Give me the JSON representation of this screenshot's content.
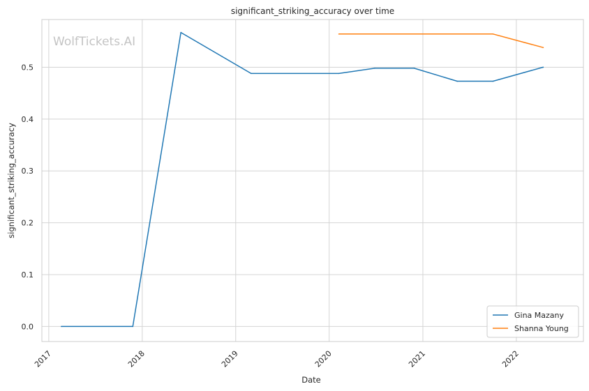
{
  "chart_data": {
    "type": "line",
    "title": "significant_striking_accuracy over time",
    "xlabel": "Date",
    "ylabel": "significant_striking_accuracy",
    "watermark": "WolfTickets.AI",
    "xlim": [
      "2016-12-05",
      "2022-09-20"
    ],
    "ylim": [
      -0.029,
      0.592
    ],
    "x_ticks": [
      "2017",
      "2018",
      "2019",
      "2020",
      "2021",
      "2022"
    ],
    "y_ticks": [
      "0.0",
      "0.1",
      "0.2",
      "0.3",
      "0.4",
      "0.5"
    ],
    "grid": true,
    "legend_position": "bottom-right",
    "series": [
      {
        "name": "Gina Mazany",
        "color": "#1f77b4",
        "points": [
          {
            "x": "2017-02-19",
            "y": 0.0
          },
          {
            "x": "2017-11-25",
            "y": 0.0
          },
          {
            "x": "2018-06-01",
            "y": 0.567
          },
          {
            "x": "2019-03-02",
            "y": 0.488
          },
          {
            "x": "2020-02-08",
            "y": 0.488
          },
          {
            "x": "2020-06-27",
            "y": 0.498
          },
          {
            "x": "2020-11-28",
            "y": 0.498
          },
          {
            "x": "2021-05-15",
            "y": 0.473
          },
          {
            "x": "2021-10-02",
            "y": 0.473
          },
          {
            "x": "2022-04-16",
            "y": 0.5
          }
        ]
      },
      {
        "name": "Shanna Young",
        "color": "#ff7f0e",
        "points": [
          {
            "x": "2020-02-08",
            "y": 0.564
          },
          {
            "x": "2021-10-02",
            "y": 0.564
          },
          {
            "x": "2022-04-16",
            "y": 0.538
          }
        ]
      }
    ]
  }
}
